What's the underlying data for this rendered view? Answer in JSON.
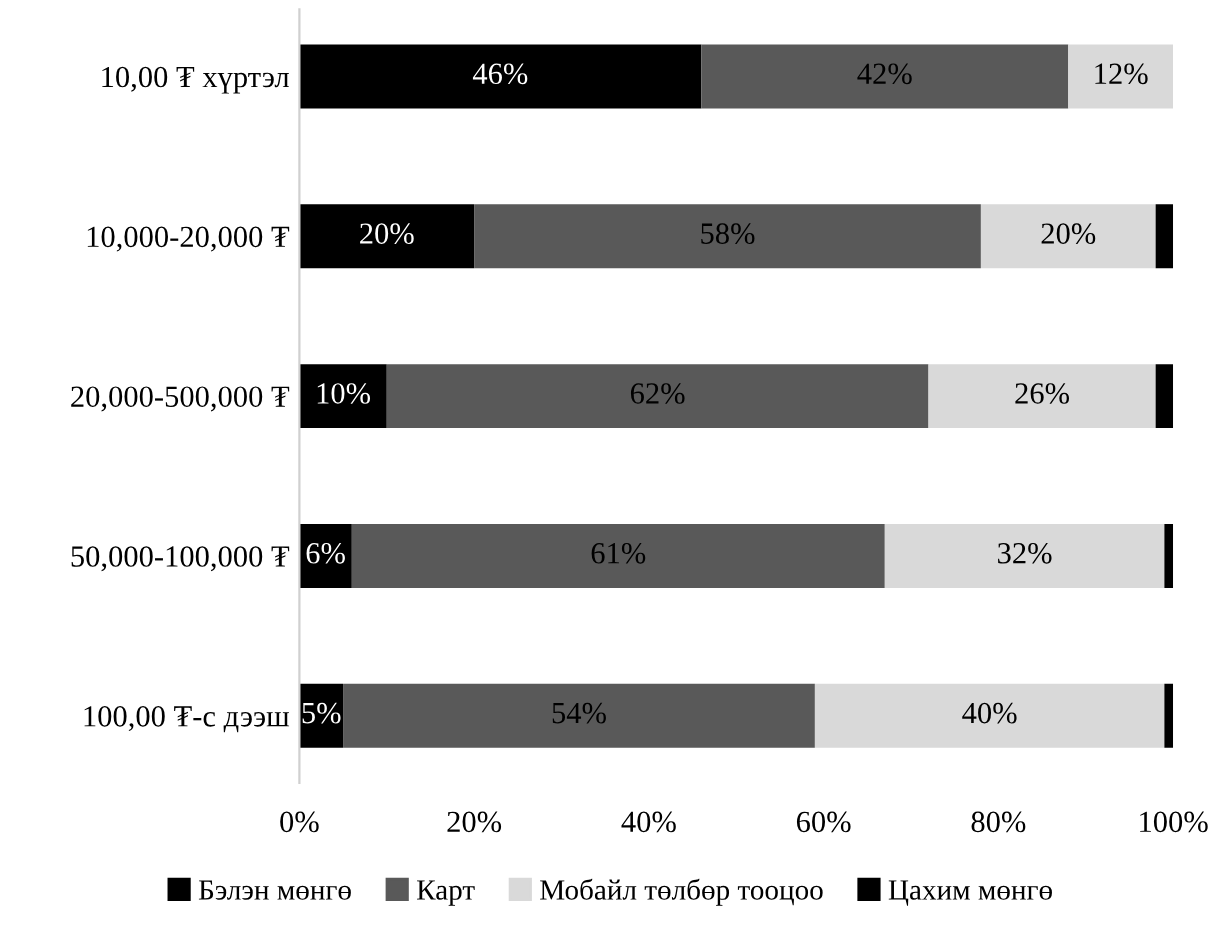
{
  "chart_data": {
    "type": "bar",
    "orientation": "horizontal",
    "stacked": true,
    "categories": [
      "10,00 ₮ хүртэл",
      "10,000-20,000 ₮",
      "20,000-500,000 ₮",
      "50,000-100,000 ₮",
      "100,00 ₮-с дээш"
    ],
    "series": [
      {
        "name": "Бэлэн мөнгө",
        "color": "#000000",
        "values": [
          46,
          20,
          10,
          6,
          5
        ],
        "value_labels": [
          "46%",
          "20%",
          "10%",
          "6%",
          "5%"
        ]
      },
      {
        "name": "Карт",
        "color": "#595959",
        "values": [
          42,
          58,
          62,
          61,
          54
        ],
        "value_labels": [
          "42%",
          "58%",
          "62%",
          "61%",
          "54%"
        ]
      },
      {
        "name": "Мобайл төлбөр тооцоо",
        "color": "#d9d9d9",
        "values": [
          12,
          20,
          26,
          32,
          40
        ],
        "value_labels": [
          "12%",
          "20%",
          "26%",
          "32%",
          "40%"
        ]
      },
      {
        "name": "Цахим мөнгө",
        "color": "#000000",
        "values": [
          0,
          2,
          2,
          1,
          1
        ],
        "value_labels": [
          null,
          null,
          null,
          null,
          null
        ]
      }
    ],
    "xlim": [
      0,
      100
    ],
    "xticks": [
      {
        "value": 0,
        "label": "0%"
      },
      {
        "value": 20,
        "label": "20%"
      },
      {
        "value": 40,
        "label": "40%"
      },
      {
        "value": 60,
        "label": "60%"
      },
      {
        "value": 80,
        "label": "80%"
      },
      {
        "value": 100,
        "label": "100%"
      }
    ],
    "grid": false,
    "legend": "bottom"
  }
}
